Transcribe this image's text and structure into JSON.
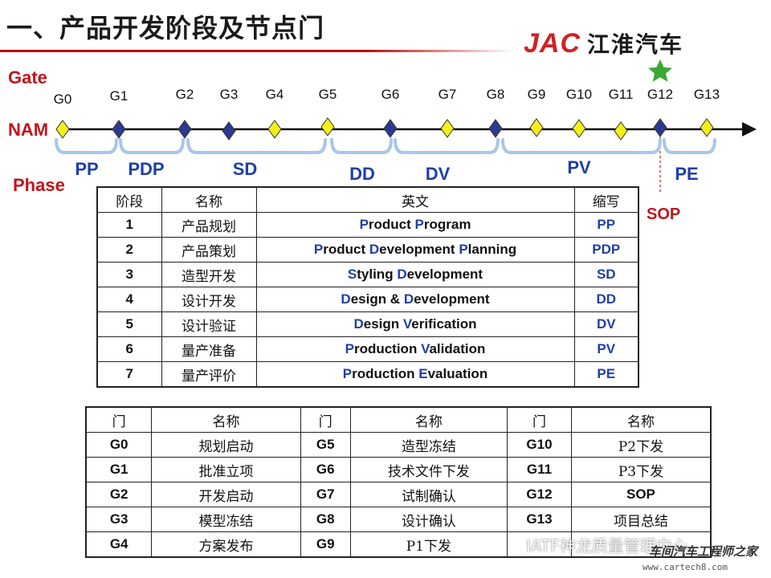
{
  "title": "一、产品开发阶段及节点门",
  "logo": {
    "brand": "JAC",
    "name_cn": "江淮汽车"
  },
  "labels": {
    "gate": "Gate",
    "nam": "NAM",
    "phase": "Phase",
    "sop": "SOP"
  },
  "colors": {
    "milestone_diamond": "#f3ef1a",
    "gate_diamond": "#2b3a8f",
    "accent_red": "#c0141c",
    "phase_blue": "#1f3fa8",
    "bracket": "#a9c6e8",
    "star": "#3aa832"
  },
  "gates": [
    {
      "label": "G0",
      "marker": "yellow"
    },
    {
      "label": "G1",
      "marker": "navy"
    },
    {
      "label": "G2",
      "marker": "navy"
    },
    {
      "label": "G3",
      "marker": "navy"
    },
    {
      "label": "G4",
      "marker": "yellow"
    },
    {
      "label": "G5",
      "marker": "yellow"
    },
    {
      "label": "G6",
      "marker": "navy"
    },
    {
      "label": "G7",
      "marker": "yellow"
    },
    {
      "label": "G8",
      "marker": "navy"
    },
    {
      "label": "G9",
      "marker": "yellow"
    },
    {
      "label": "G10",
      "marker": "yellow"
    },
    {
      "label": "G11",
      "marker": "yellow"
    },
    {
      "label": "G12",
      "marker": "navy",
      "star": true
    },
    {
      "label": "G13",
      "marker": "yellow"
    }
  ],
  "phases": [
    "PP",
    "PDP",
    "SD",
    "DD",
    "DV",
    "PV",
    "PE"
  ],
  "phase_table": {
    "headers": [
      "阶段",
      "名称",
      "英文",
      "缩写"
    ],
    "rows": [
      {
        "no": "1",
        "name": "产品规划",
        "en": [
          [
            "P",
            "roduct "
          ],
          [
            "P",
            "rogram"
          ]
        ],
        "abbr": "PP"
      },
      {
        "no": "2",
        "name": "产品策划",
        "en": [
          [
            "P",
            "roduct "
          ],
          [
            "D",
            "evelopment "
          ],
          [
            "P",
            "lanning"
          ]
        ],
        "abbr": "PDP"
      },
      {
        "no": "3",
        "name": "造型开发",
        "en": [
          [
            "S",
            "tyling "
          ],
          [
            "D",
            "evelopment"
          ]
        ],
        "abbr": "SD"
      },
      {
        "no": "4",
        "name": "设计开发",
        "en": [
          [
            "D",
            "esign & "
          ],
          [
            "D",
            "evelopment"
          ]
        ],
        "abbr": "DD"
      },
      {
        "no": "5",
        "name": "设计验证",
        "en": [
          [
            "D",
            "esign "
          ],
          [
            "V",
            "erification"
          ]
        ],
        "abbr": "DV"
      },
      {
        "no": "6",
        "name": "量产准备",
        "en": [
          [
            "P",
            "roduction "
          ],
          [
            "V",
            "alidation"
          ]
        ],
        "abbr": "PV"
      },
      {
        "no": "7",
        "name": "量产评价",
        "en": [
          [
            "P",
            "roduction "
          ],
          [
            "E",
            "valuation"
          ]
        ],
        "abbr": "PE"
      }
    ]
  },
  "gate_table": {
    "headers": [
      "门",
      "名称",
      "门",
      "名称",
      "门",
      "名称"
    ],
    "rows": [
      [
        "G0",
        "规划启动",
        "G5",
        "造型冻结",
        "G10",
        "P2下发"
      ],
      [
        "G1",
        "批准立项",
        "G6",
        "技术文件下发",
        "G11",
        "P3下发"
      ],
      [
        "G2",
        "开发启动",
        "G7",
        "试制确认",
        "G12",
        "SOP"
      ],
      [
        "G3",
        "模型冻结",
        "G8",
        "设计确认",
        "G13",
        "项目总结"
      ],
      [
        "G4",
        "方案发布",
        "G9",
        "P1下发",
        "",
        ""
      ]
    ]
  },
  "watermarks": {
    "wechat": "IATF神龙质量管理中心",
    "site_cn": "车间汽车工程师之家",
    "site_url": "www.cartech8.com"
  }
}
